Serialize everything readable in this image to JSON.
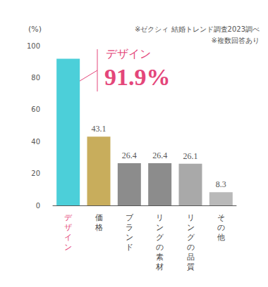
{
  "chart_data": {
    "type": "bar",
    "y_label": "(%)",
    "notes": [
      "※ゼクシィ 結婚トレンド調査2023調べ",
      "※複数回答あり"
    ],
    "annotation": {
      "text": "デザイン",
      "value_label": "91.9%"
    },
    "categories": [
      "デザイン",
      "価格",
      "ブランド",
      "リングの素材",
      "リングの品質",
      "その他"
    ],
    "values": [
      91.9,
      43.1,
      26.4,
      26.4,
      26.1,
      8.3
    ],
    "colors": [
      "#4ccfd9",
      "#c8ad5c",
      "#8c8c8c",
      "#8c8c8c",
      "#a9a9a9",
      "#b9b9b9"
    ],
    "ylim": [
      0,
      100
    ],
    "yticks": [
      0,
      20,
      40,
      60,
      80,
      100
    ],
    "grid": false,
    "data_labels": true
  }
}
